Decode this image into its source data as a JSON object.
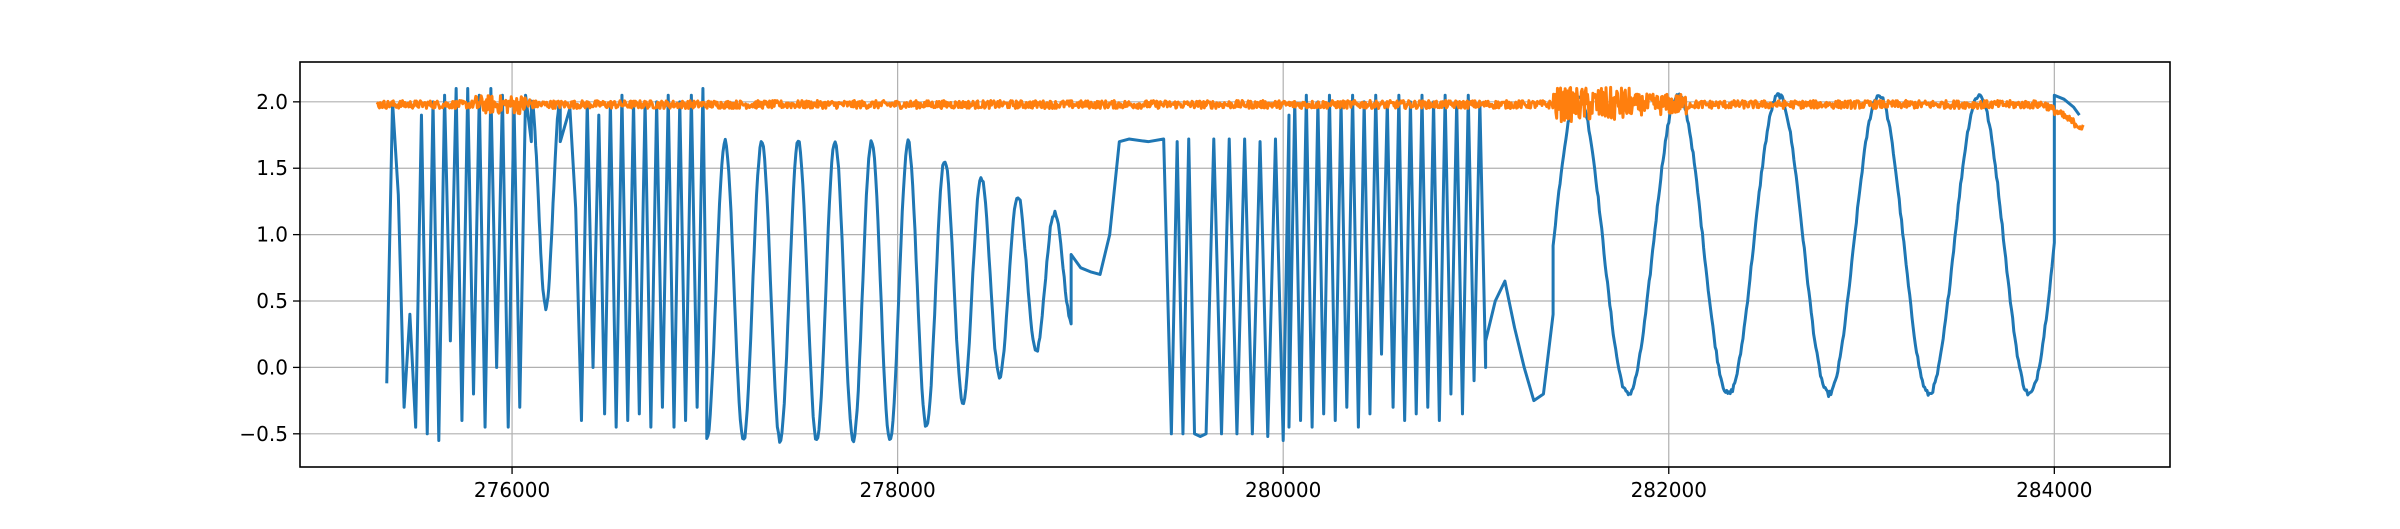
{
  "chart_data": {
    "type": "line",
    "title": "",
    "xlabel": "",
    "ylabel": "",
    "xlim": [
      274900,
      284600
    ],
    "ylim": [
      -0.75,
      2.3
    ],
    "grid": true,
    "xticks": [
      276000,
      278000,
      280000,
      282000,
      284000
    ],
    "xtick_labels": [
      "276000",
      "278000",
      "280000",
      "282000",
      "284000"
    ],
    "yticks": [
      -0.5,
      0.0,
      0.5,
      1.0,
      1.5,
      2.0
    ],
    "ytick_labels": [
      "−0.5",
      "0.0",
      "0.5",
      "1.0",
      "1.5",
      "2.0"
    ],
    "series": [
      {
        "color": "#1f77b4",
        "segments": [
          {
            "kind": "points",
            "x": [
              275350,
              275380,
              275410,
              275440,
              275470,
              275500,
              275530,
              275560,
              275590,
              275620,
              275650,
              275680,
              275710,
              275740,
              275770,
              275800,
              275830,
              275860,
              275890,
              275920,
              275950,
              275980,
              276010,
              276040,
              276070,
              276100
            ],
            "y": [
              -0.12,
              2.0,
              1.3,
              -0.3,
              0.4,
              -0.45,
              1.9,
              -0.5,
              2.0,
              -0.55,
              2.05,
              0.2,
              2.1,
              -0.4,
              2.1,
              -0.2,
              2.05,
              -0.45,
              2.1,
              0.0,
              2.05,
              -0.45,
              2.0,
              -0.3,
              2.05,
              1.7
            ]
          },
          {
            "kind": "osc",
            "x0": 276100,
            "x1": 276250,
            "period": 150,
            "ymin": 0.45,
            "ymax": 2.0,
            "start_phase": "high"
          },
          {
            "kind": "points",
            "x": [
              276250,
              276300,
              276330,
              276360,
              276390,
              276420,
              276450,
              276480,
              276510,
              276540,
              276570,
              276600,
              276630,
              276660,
              276690,
              276720,
              276750,
              276780,
              276810,
              276840,
              276870,
              276900,
              276930,
              276960,
              276990,
              277010
            ],
            "y": [
              1.7,
              1.95,
              1.2,
              -0.4,
              2.0,
              0.0,
              1.9,
              -0.35,
              2.0,
              -0.45,
              2.05,
              -0.4,
              2.0,
              -0.35,
              2.0,
              -0.45,
              2.0,
              -0.3,
              2.05,
              -0.45,
              2.0,
              -0.4,
              2.05,
              -0.3,
              2.1,
              0.0
            ]
          },
          {
            "kind": "osc",
            "x0": 277010,
            "x1": 278900,
            "period": 190,
            "ymin": -0.55,
            "ymax": 1.7,
            "start_phase": "low",
            "decay_to": [
              0.3,
              1.1
            ]
          },
          {
            "kind": "points",
            "x": [
              278900,
              278950,
              279000,
              279050,
              279100,
              279150,
              279200,
              279300,
              279380,
              279420,
              279450,
              279480,
              279510,
              279540,
              279570,
              279600,
              279640,
              279680,
              279720,
              279760,
              279800,
              279840,
              279880,
              279920,
              279960,
              280000,
              280030
            ],
            "y": [
              0.85,
              0.75,
              0.72,
              0.7,
              1.0,
              1.7,
              1.72,
              1.7,
              1.72,
              -0.5,
              1.7,
              -0.5,
              1.72,
              -0.5,
              -0.52,
              -0.5,
              1.72,
              -0.5,
              1.72,
              -0.5,
              1.72,
              -0.5,
              1.7,
              -0.52,
              1.72,
              -0.55,
              1.9
            ]
          },
          {
            "kind": "points",
            "x": [
              280030,
              280060,
              280090,
              280120,
              280150,
              280180,
              280210,
              280240,
              280270,
              280300,
              280330,
              280360,
              280390,
              280420,
              280450,
              280480,
              280510,
              280540,
              280570,
              280600,
              280630,
              280660,
              280690,
              280720,
              280750,
              280780,
              280810,
              280840,
              280870,
              280900,
              280930,
              280960,
              280990,
              281020,
              281050
            ],
            "y": [
              -0.45,
              2.0,
              -0.4,
              2.05,
              -0.45,
              2.0,
              -0.35,
              2.05,
              -0.4,
              2.0,
              -0.3,
              2.05,
              -0.45,
              2.0,
              -0.35,
              2.05,
              0.1,
              2.0,
              -0.3,
              2.05,
              -0.4,
              2.0,
              -0.35,
              2.05,
              -0.3,
              2.0,
              -0.4,
              2.05,
              -0.2,
              2.0,
              -0.35,
              2.05,
              -0.1,
              2.0,
              0.0
            ]
          },
          {
            "kind": "points",
            "x": [
              281050,
              281100,
              281150,
              281200,
              281250,
              281300,
              281350,
              281400
            ],
            "y": [
              0.2,
              0.5,
              0.65,
              0.3,
              0.0,
              -0.25,
              -0.2,
              0.4
            ]
          },
          {
            "kind": "osc",
            "x0": 281400,
            "x1": 284000,
            "period": 520,
            "ymin": -0.2,
            "ymax": 2.05,
            "start_phase": "rising"
          },
          {
            "kind": "points",
            "x": [
              284000,
              284050,
              284100,
              284130
            ],
            "y": [
              2.05,
              2.02,
              1.96,
              1.9
            ]
          }
        ]
      },
      {
        "color": "#ff7f0e",
        "segments": [
          {
            "kind": "noise",
            "x0": 275300,
            "x1": 284150,
            "base": 1.98,
            "amp": 0.03,
            "bursts": [
              [
                275800,
                276100,
                0.07
              ],
              [
                281400,
                281800,
                0.13
              ],
              [
                281800,
                282100,
                0.08
              ]
            ],
            "tail": [
              [
                283950,
                284150,
                1.98,
                1.8
              ]
            ]
          }
        ]
      }
    ]
  }
}
